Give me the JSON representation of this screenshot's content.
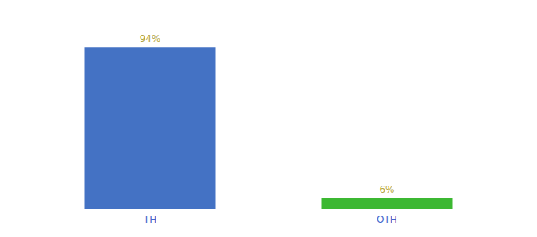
{
  "chart_data": {
    "type": "bar",
    "categories": [
      "TH",
      "OTH"
    ],
    "values": [
      94,
      6
    ],
    "value_labels": [
      "94%",
      "6%"
    ],
    "colors": [
      "#4472c4",
      "#3cb832"
    ],
    "ylim": [
      0,
      108
    ],
    "grid": false,
    "data_labels": true,
    "tick_labels": "x"
  }
}
